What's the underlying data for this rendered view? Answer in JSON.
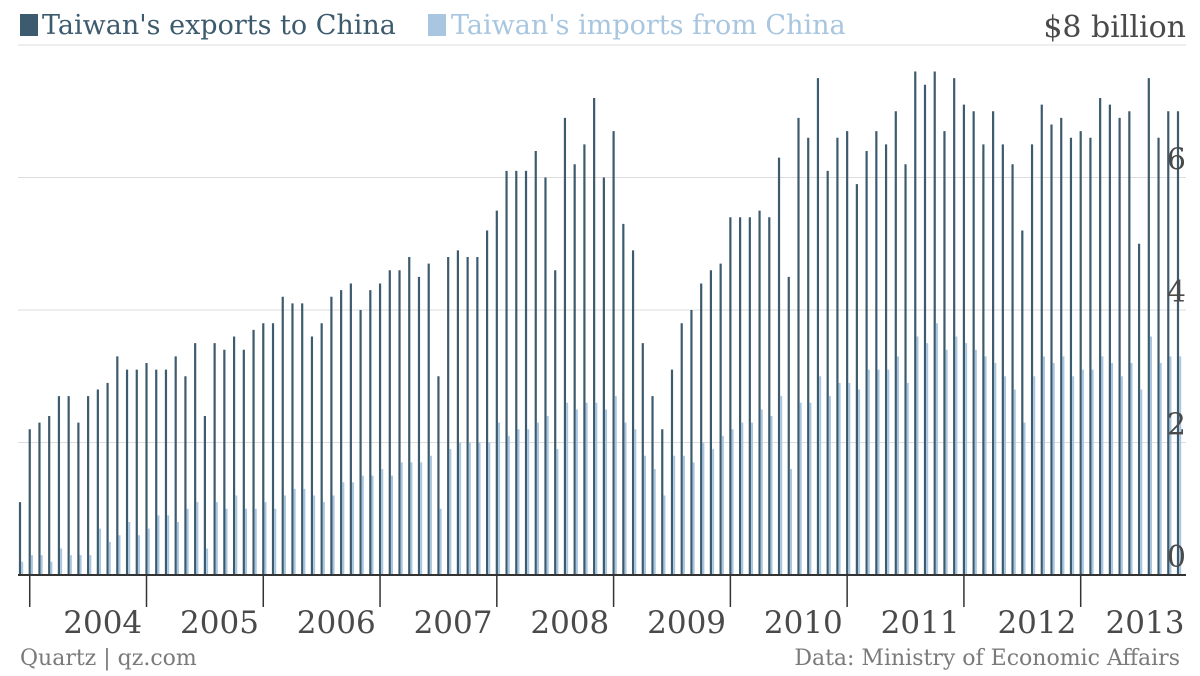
{
  "colors": {
    "exports": "#3d5b6e",
    "imports": "#a8c6e0",
    "grid": "#dddddd",
    "axis": "#333333",
    "text": "#4a4a4a",
    "footer": "#7a7a7a"
  },
  "footer": {
    "source_left": "Quartz | qz.com",
    "source_right": "Data: Ministry of Economic Affairs"
  },
  "chart_data": {
    "type": "bar",
    "title": "",
    "xlabel": "",
    "ylabel": "",
    "y_unit_label": "$8 billion",
    "ylim": [
      0,
      8
    ],
    "y_ticks": [
      0,
      2,
      4,
      6,
      8
    ],
    "y_tick_labels": [
      "0",
      "2",
      "4",
      "6",
      "$8 billion"
    ],
    "grid": true,
    "legend_position": "top-left",
    "x_tick_labels": [
      "2004",
      "2005",
      "2006",
      "2007",
      "2008",
      "2009",
      "2010",
      "2011",
      "2012",
      "2013"
    ],
    "x_start": "2003-06",
    "series": [
      {
        "name": "Taiwan's exports to China",
        "values": [
          1.1,
          2.2,
          2.3,
          2.4,
          2.7,
          2.7,
          2.3,
          2.7,
          2.8,
          2.9,
          3.3,
          3.1,
          3.1,
          3.2,
          3.1,
          3.1,
          3.3,
          3.0,
          3.5,
          2.4,
          3.5,
          3.4,
          3.6,
          3.4,
          3.7,
          3.8,
          3.8,
          4.2,
          4.1,
          4.1,
          3.6,
          3.8,
          4.2,
          4.3,
          4.4,
          4.0,
          4.3,
          4.4,
          4.6,
          4.6,
          4.8,
          4.5,
          4.7,
          3.0,
          4.8,
          4.9,
          4.8,
          4.8,
          5.2,
          5.5,
          6.1,
          6.1,
          6.1,
          6.4,
          6.0,
          4.6,
          6.9,
          6.2,
          6.5,
          7.2,
          6.0,
          6.7,
          5.3,
          4.9,
          3.5,
          2.7,
          2.2,
          3.1,
          3.8,
          4.0,
          4.4,
          4.6,
          4.7,
          5.4,
          5.4,
          5.4,
          5.5,
          5.4,
          6.3,
          4.5,
          6.9,
          6.6,
          7.5,
          6.1,
          6.6,
          6.7,
          5.9,
          6.4,
          6.7,
          6.5,
          7.0,
          6.2,
          7.6,
          7.4,
          7.6,
          6.7,
          7.5,
          7.1,
          7.0,
          6.5,
          7.0,
          6.5,
          6.2,
          5.2,
          6.5,
          7.1,
          6.8,
          6.9,
          6.6,
          6.7,
          6.6,
          7.2,
          7.1,
          6.9,
          7.0,
          5.0,
          7.5,
          6.6,
          7.0,
          7.0
        ]
      },
      {
        "name": "Taiwan's imports from China",
        "values": [
          0.2,
          0.3,
          0.3,
          0.2,
          0.4,
          0.3,
          0.3,
          0.3,
          0.7,
          0.5,
          0.6,
          0.8,
          0.6,
          0.7,
          0.9,
          0.9,
          0.8,
          1.0,
          1.1,
          0.4,
          1.1,
          1.0,
          1.2,
          1.0,
          1.0,
          1.1,
          1.0,
          1.2,
          1.3,
          1.3,
          1.2,
          1.1,
          1.2,
          1.4,
          1.4,
          1.5,
          1.5,
          1.6,
          1.5,
          1.7,
          1.7,
          1.7,
          1.8,
          1.0,
          1.9,
          2.0,
          2.0,
          2.0,
          2.0,
          2.3,
          2.1,
          2.2,
          2.2,
          2.3,
          2.4,
          1.9,
          2.6,
          2.5,
          2.6,
          2.6,
          2.5,
          2.7,
          2.3,
          2.2,
          1.8,
          1.6,
          1.2,
          1.8,
          1.8,
          1.7,
          2.0,
          1.9,
          2.1,
          2.2,
          2.3,
          2.3,
          2.5,
          2.4,
          2.7,
          1.6,
          2.6,
          2.6,
          3.0,
          2.7,
          2.9,
          2.9,
          2.8,
          3.1,
          3.1,
          3.1,
          3.3,
          2.9,
          3.6,
          3.5,
          3.8,
          3.4,
          3.6,
          3.5,
          3.4,
          3.3,
          3.2,
          3.0,
          2.8,
          2.3,
          3.0,
          3.3,
          3.2,
          3.3,
          3.0,
          3.1,
          3.1,
          3.3,
          3.2,
          3.0,
          3.2,
          2.8,
          3.6,
          3.2,
          3.3,
          3.3
        ]
      }
    ]
  }
}
